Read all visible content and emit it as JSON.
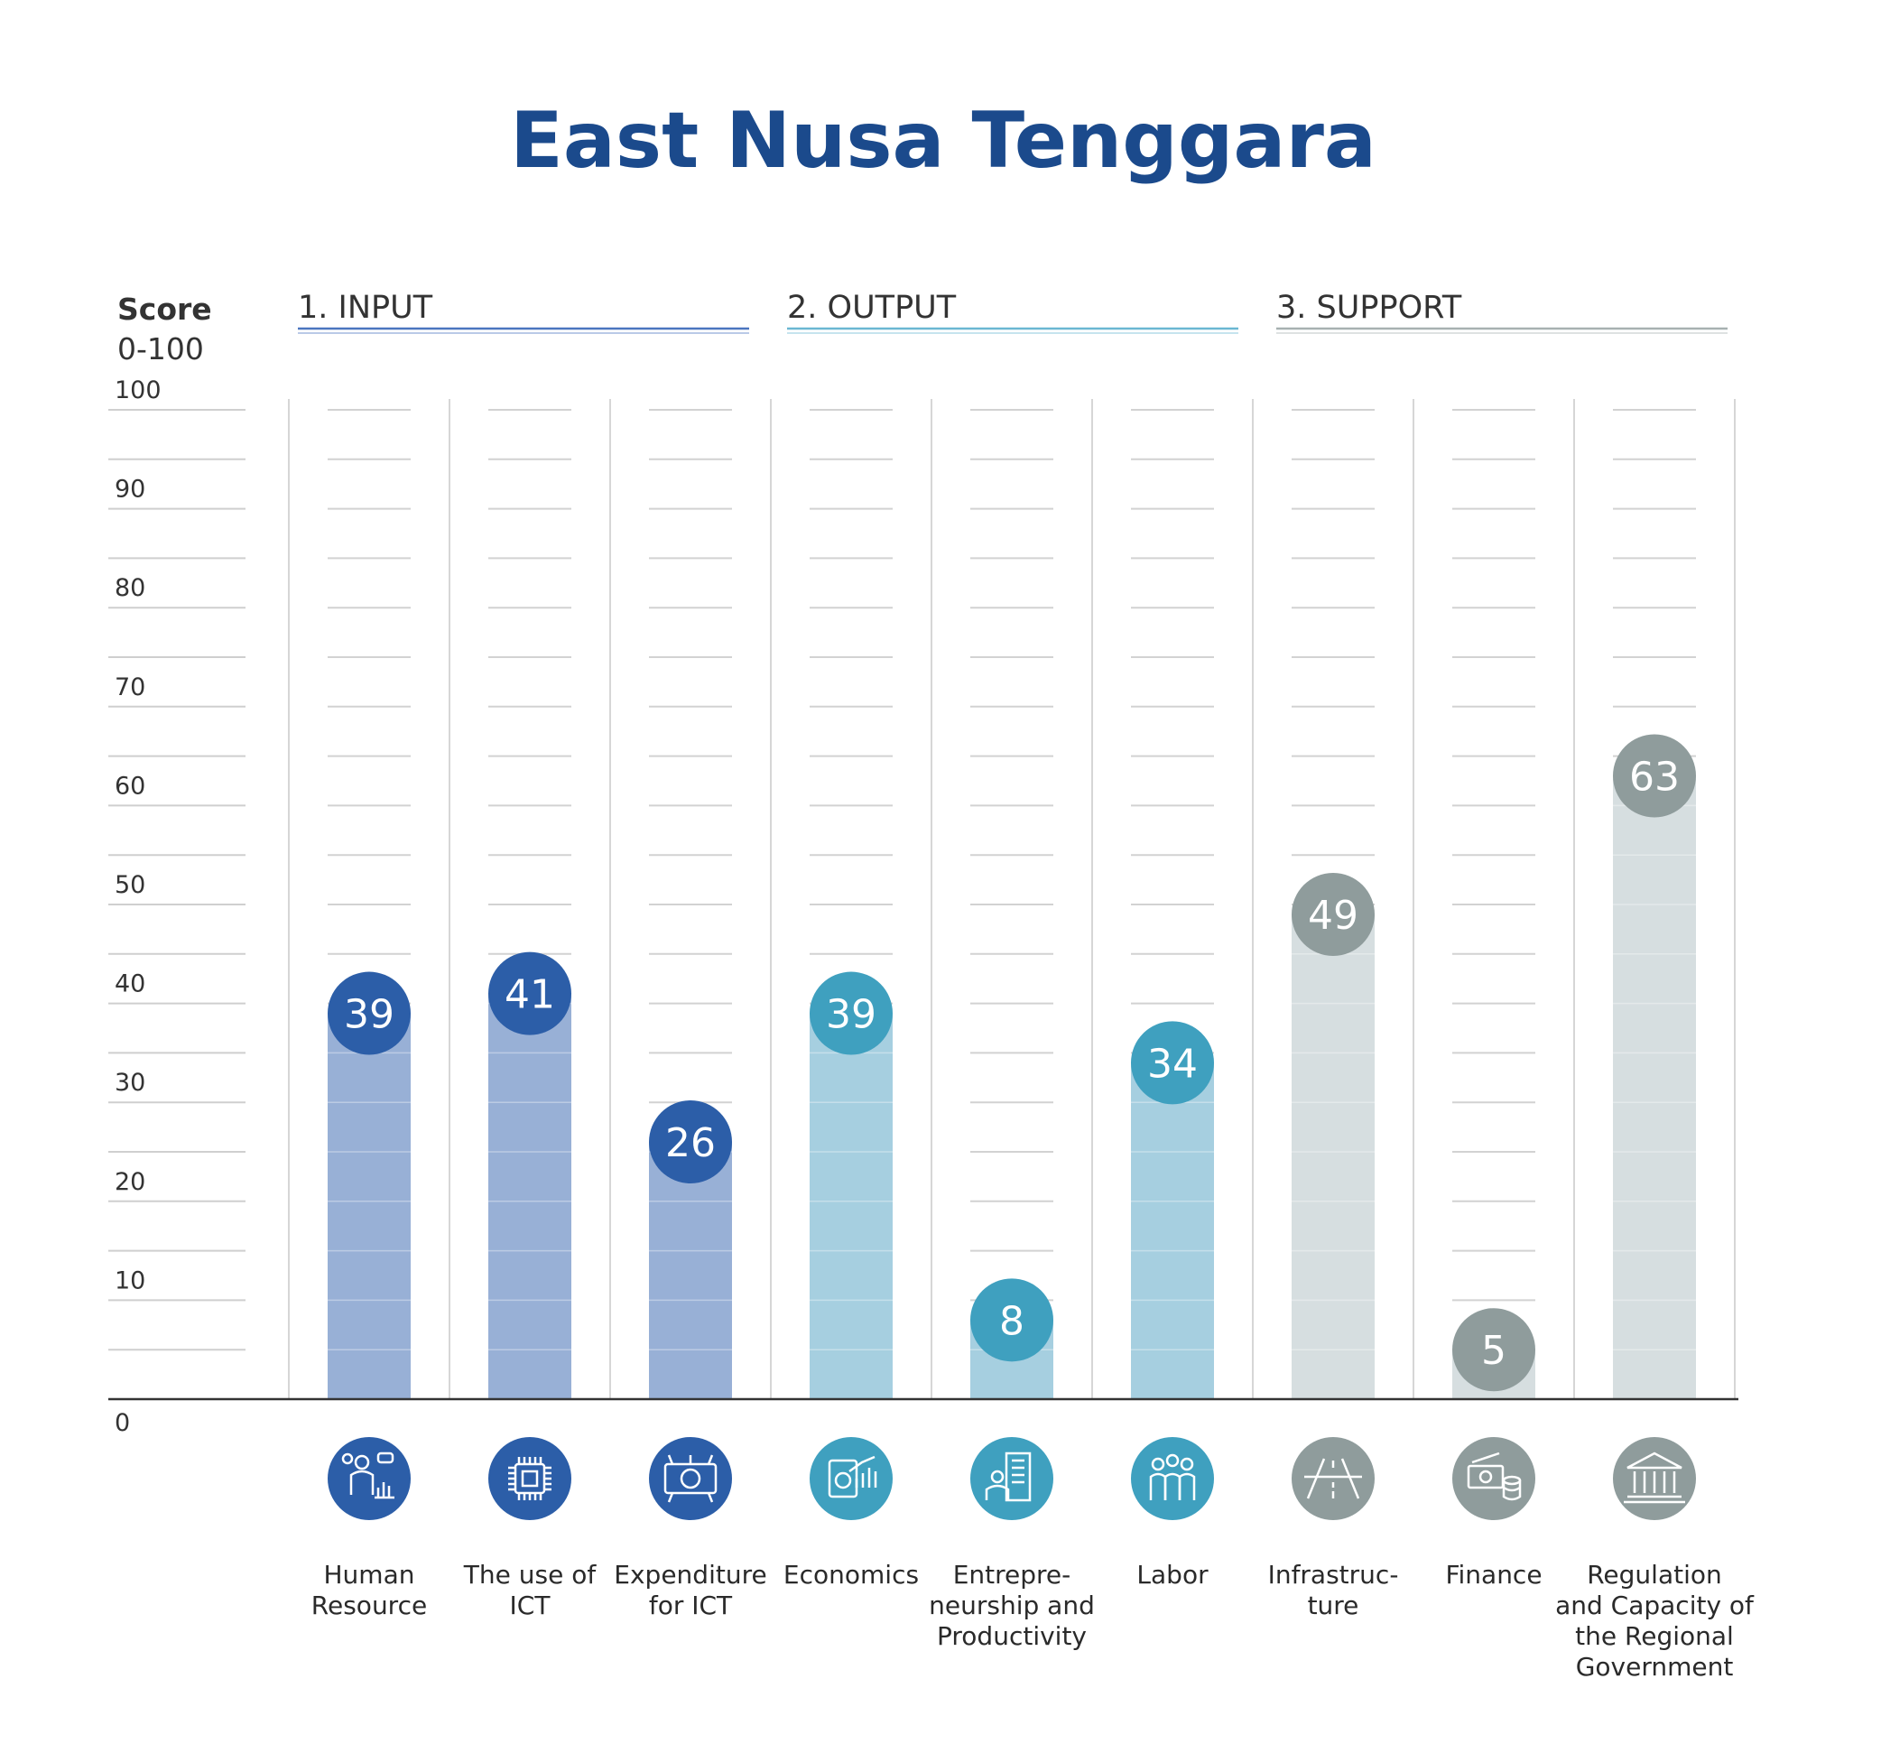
{
  "chart_data": {
    "type": "bar",
    "title": "East Nusa Tenggara",
    "ylabel": "Score",
    "ylabel_range": "0-100",
    "ylim": [
      0,
      100
    ],
    "yticks": [
      "0",
      "10",
      "20",
      "30",
      "40",
      "50",
      "60",
      "70",
      "80",
      "90",
      "100"
    ],
    "grid": true,
    "groups": [
      {
        "name": "1. INPUT",
        "color": "#2c5ea8",
        "bar_color": "#98b0d6",
        "rule_color": "#4a75bf",
        "categories": [
          {
            "label_lines": [
              "Human",
              "Resource"
            ],
            "value": 39,
            "icon": "human-resource-icon"
          },
          {
            "label_lines": [
              "The use of",
              "ICT"
            ],
            "value": 41,
            "icon": "microchip-icon"
          },
          {
            "label_lines": [
              "Expenditure",
              "for ICT"
            ],
            "value": 26,
            "icon": "rupiah-money-icon"
          }
        ]
      },
      {
        "name": "2. OUTPUT",
        "color": "#3fa0bf",
        "bar_color": "#a6cfe0",
        "rule_color": "#6ab7d2",
        "categories": [
          {
            "label_lines": [
              "Economics"
            ],
            "value": 39,
            "icon": "economics-chart-icon"
          },
          {
            "label_lines": [
              "Entrepre-",
              "neurship and",
              "Productivity"
            ],
            "value": 8,
            "icon": "entrepreneur-building-icon"
          },
          {
            "label_lines": [
              "Labor"
            ],
            "value": 34,
            "icon": "workers-icon"
          }
        ]
      },
      {
        "name": "3. SUPPORT",
        "color": "#8f9c9c",
        "bar_color": "#d6dee0",
        "rule_color": "#a7b1b1",
        "categories": [
          {
            "label_lines": [
              "Infrastruc-",
              "ture"
            ],
            "value": 49,
            "icon": "road-icon"
          },
          {
            "label_lines": [
              "Finance"
            ],
            "value": 5,
            "icon": "money-coins-icon"
          },
          {
            "label_lines": [
              "Regulation",
              "and Capacity of",
              "the Regional",
              "Government"
            ],
            "value": 63,
            "icon": "government-building-icon"
          }
        ]
      }
    ]
  }
}
